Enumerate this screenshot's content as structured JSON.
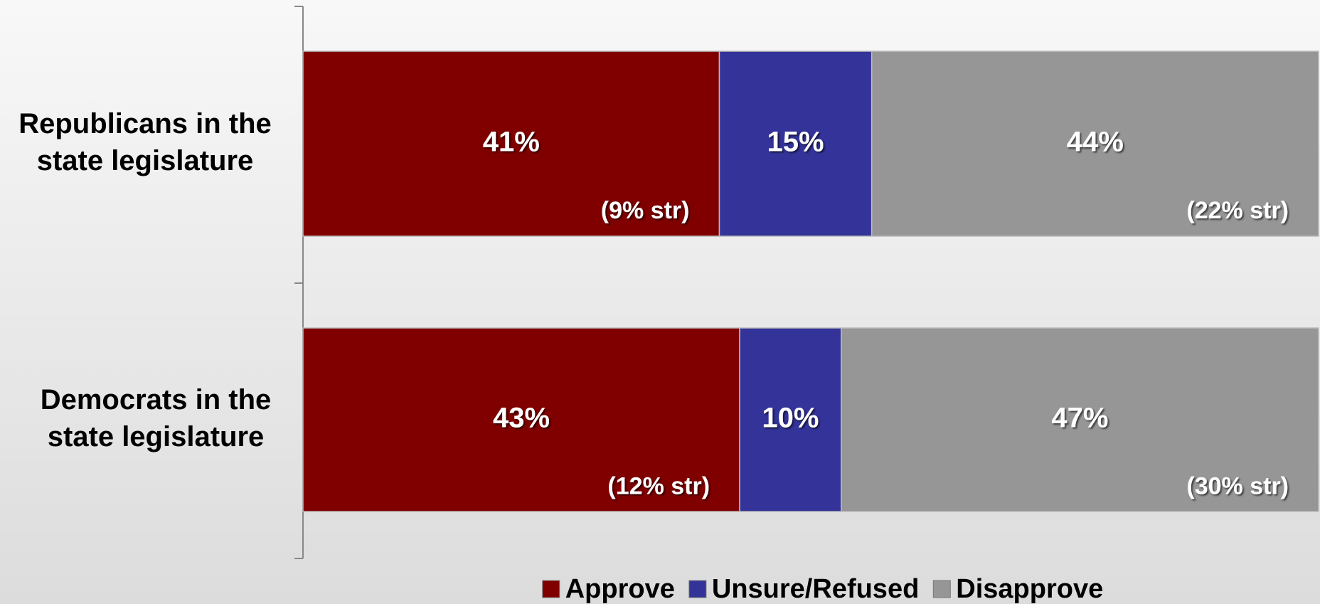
{
  "chart_data": {
    "type": "stacked-bar-horizontal",
    "categories": [
      "Republicans in the\nstate legislature",
      "Democrats in the\nstate legislature"
    ],
    "xlim": [
      0,
      100
    ],
    "legend": "bottom",
    "series": [
      {
        "name": "Approve",
        "color": "#800000",
        "values": [
          41,
          43
        ],
        "value_labels": [
          "41%",
          "43%"
        ],
        "notes": [
          "(9% str)",
          "(12% str)"
        ]
      },
      {
        "name": "Unsure/Refused",
        "color": "#333399",
        "values": [
          15,
          10
        ],
        "value_labels": [
          "15%",
          "10%"
        ]
      },
      {
        "name": "Disapprove",
        "color": "#969696",
        "values": [
          44,
          47
        ],
        "value_labels": [
          "44%",
          "47%"
        ],
        "notes": [
          "(22% str)",
          "(30% str)"
        ]
      }
    ]
  }
}
